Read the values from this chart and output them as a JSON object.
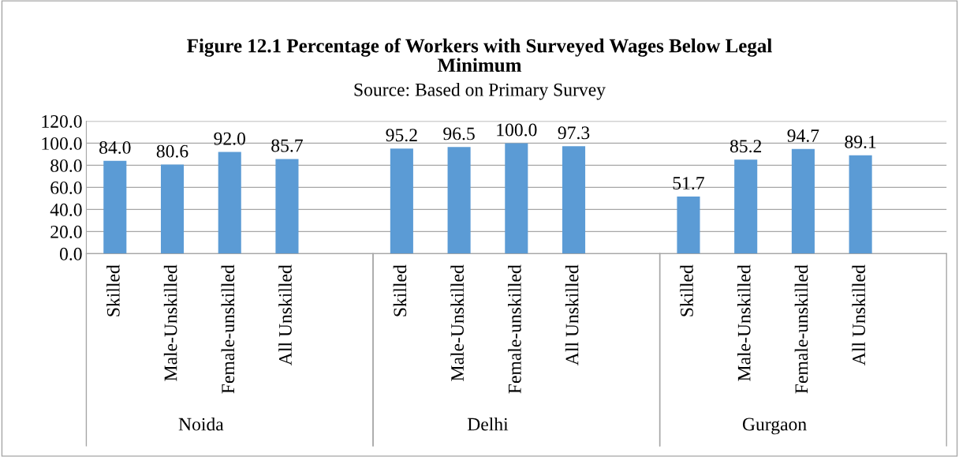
{
  "chart_data": {
    "type": "bar",
    "title": "Figure 12.1 Percentage of Workers with Surveyed Wages Below Legal\nMinimum",
    "subtitle": "Source: Based on Primary Survey",
    "categories": [
      "Skilled",
      "Male-Unskilled",
      "Female-unskilled",
      "All Unskilled",
      null,
      "Skilled",
      "Male-Unskilled",
      "Female-unskilled",
      "All Unskilled",
      null,
      "Skilled",
      "Male-Unskilled",
      "Female-unskilled",
      "All Unskilled",
      null
    ],
    "values": [
      84.0,
      80.6,
      92.0,
      85.7,
      null,
      95.2,
      96.5,
      100.0,
      97.3,
      null,
      51.7,
      85.2,
      94.7,
      89.1,
      null
    ],
    "color": "#5b9bd5",
    "annotations": [
      "Noida",
      "Delhi",
      "Gurgaon"
    ],
    "ylim": [
      0,
      120
    ],
    "yticks": [
      {
        "value": 0,
        "label": "0.0"
      },
      {
        "value": 20,
        "label": "20.0"
      },
      {
        "value": 40,
        "label": "40.0"
      },
      {
        "value": 60,
        "label": "60.0"
      },
      {
        "value": 80,
        "label": "80.0"
      },
      {
        "value": 100,
        "label": "100.0"
      },
      {
        "value": 120,
        "label": "120.0"
      }
    ],
    "value_labels": [
      "84.0",
      "80.6",
      "92.0",
      "85.7",
      null,
      "95.2",
      "96.5",
      "100.0",
      "97.3",
      null,
      "51.7",
      "85.2",
      "94.7",
      "89.1",
      null
    ],
    "grid": "y"
  }
}
